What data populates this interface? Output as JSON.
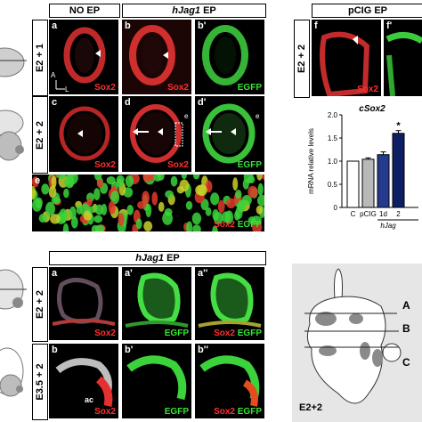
{
  "top_left": {
    "headers": {
      "no_ep": "NO EP",
      "hjag1_ep_gene": "hJag1",
      "hjag1_ep_suffix": " EP"
    },
    "rows": [
      {
        "label": "E2 + 1"
      },
      {
        "label": "E2 + 2"
      }
    ],
    "panels": {
      "a": {
        "letter": "a",
        "marker1": "Sox2",
        "marker2": ""
      },
      "b": {
        "letter": "b",
        "marker1": "Sox2",
        "marker2": ""
      },
      "b2": {
        "letter": "b'",
        "marker1": "",
        "marker2": "EGFP"
      },
      "c": {
        "letter": "c",
        "marker1": "Sox2",
        "marker2": ""
      },
      "d": {
        "letter": "d",
        "marker1": "Sox2",
        "marker2": "",
        "inset": "e"
      },
      "d2": {
        "letter": "d'",
        "marker1": "",
        "marker2": "EGFP",
        "inset": "e"
      },
      "e": {
        "letter": "e",
        "marker1": "Sox2",
        "marker2": "EGFP"
      }
    },
    "orientation": {
      "a": "A",
      "l": "L"
    }
  },
  "top_right": {
    "header": "pCIG EP",
    "row_label": "E2 + 2",
    "panels": {
      "f": {
        "letter": "f",
        "marker1": "Sox2"
      },
      "f2": {
        "letter": "f'"
      }
    }
  },
  "chart_data": {
    "type": "bar",
    "title": "cSox2",
    "ylabel": "mRNA relative levels",
    "ylim": [
      0,
      2.0
    ],
    "yticks": [
      "0",
      "0.5",
      "1.0",
      "1.5",
      "2.0"
    ],
    "categories": [
      "C",
      "pCIG",
      "1d",
      "2"
    ],
    "group_label": "hJag",
    "values": [
      1.0,
      1.04,
      1.14,
      1.6
    ],
    "errors": [
      0,
      0.03,
      0.06,
      0.06
    ],
    "colors": [
      "#ffffff",
      "#b9b9b9",
      "#243a8c",
      "#0d1f63"
    ],
    "annotations": [
      "",
      "",
      "",
      "*"
    ]
  },
  "bottom_left": {
    "header_gene": "hJag1",
    "header_suffix": " EP",
    "rows": [
      {
        "label": "E2 + 2"
      },
      {
        "label": "E3.5 + 2"
      }
    ],
    "panels": {
      "a": {
        "letter": "a",
        "marker1": "Sox2",
        "marker2": ""
      },
      "a2": {
        "letter": "a'",
        "marker1": "",
        "marker2": "EGFP"
      },
      "a3": {
        "letter": "a''",
        "marker1": "Sox2",
        "marker2": "EGFP"
      },
      "b": {
        "letter": "b",
        "marker1": "Sox2",
        "marker2": "",
        "annotation": "ac"
      },
      "b2": {
        "letter": "b'",
        "marker1": "",
        "marker2": "EGFP"
      },
      "b3": {
        "letter": "b''",
        "marker1": "Sox2",
        "marker2": "EGFP"
      }
    }
  },
  "schematic": {
    "labels": {
      "a": "A",
      "b": "B",
      "c": "C"
    },
    "stage": "E2+2"
  },
  "colors": {
    "sox2": "#ff3030",
    "egfp": "#37e437",
    "bar_dark": "#0d1f63"
  }
}
